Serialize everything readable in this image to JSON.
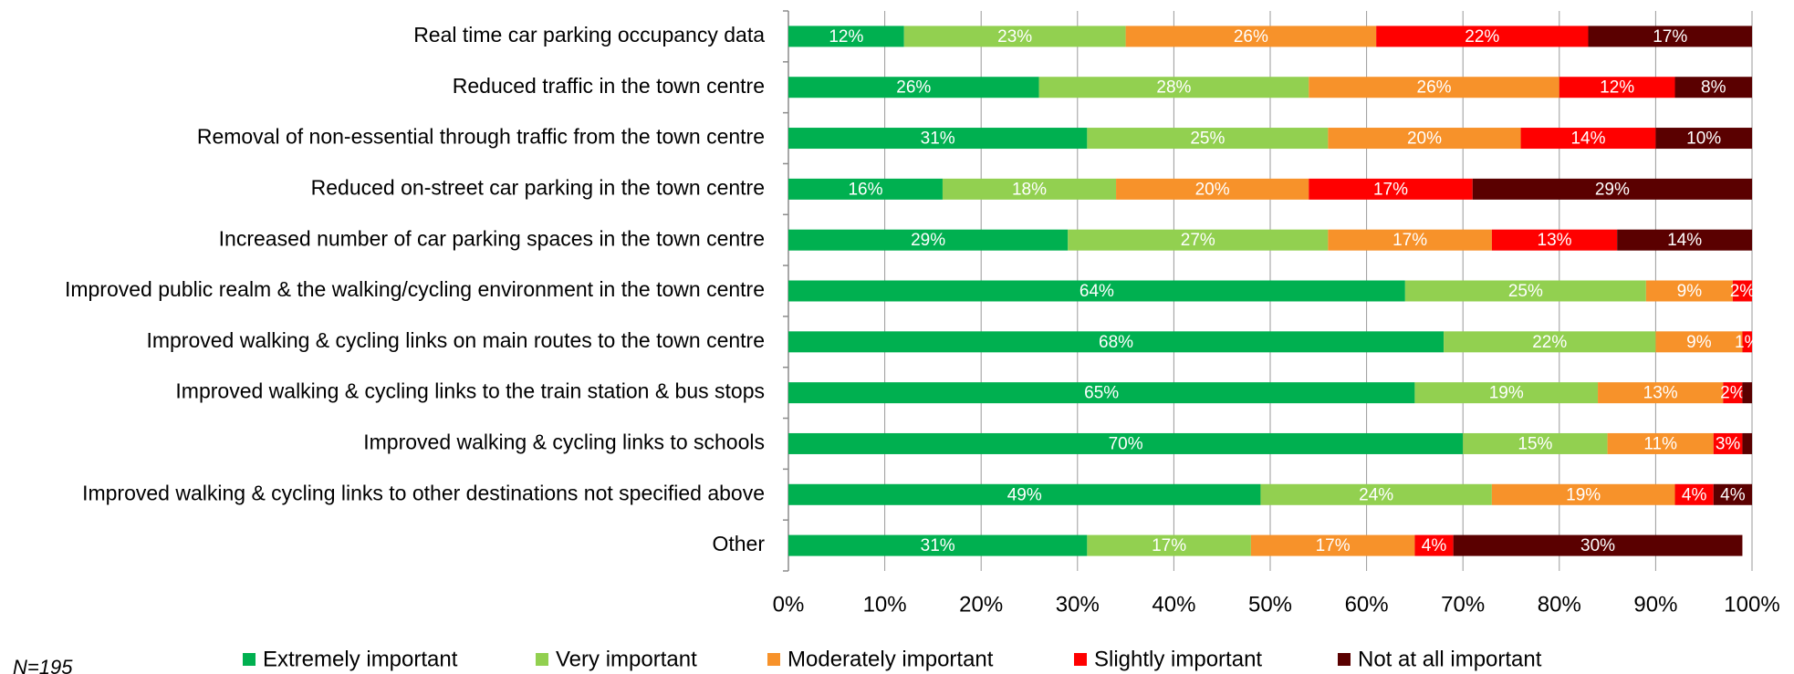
{
  "chart_data": {
    "type": "stacked_barh",
    "categories": [
      "Real time car parking occupancy data",
      "Reduced traffic in the town centre",
      "Removal of non-essential through traffic from the town centre",
      "Reduced on-street car parking in the town centre",
      "Increased number of car parking spaces in the town centre",
      "Improved public realm & the walking/cycling environment in the town centre",
      "Improved walking & cycling links on main routes to the town centre",
      "Improved walking & cycling links to the train station & bus stops",
      "Improved walking & cycling links to schools",
      "Improved walking & cycling links to other destinations not specified above",
      "Other"
    ],
    "series": [
      {
        "name": "Extremely important",
        "color": "#00b050",
        "values": [
          12,
          26,
          31,
          16,
          29,
          64,
          68,
          65,
          70,
          49,
          31
        ],
        "value_labels": [
          "12%",
          "26%",
          "31%",
          "16%",
          "29%",
          "64%",
          "68%",
          "65%",
          "70%",
          "49%",
          "31%"
        ]
      },
      {
        "name": "Very important",
        "color": "#92d050",
        "values": [
          23,
          28,
          25,
          18,
          27,
          25,
          22,
          19,
          15,
          24,
          17
        ],
        "value_labels": [
          "23%",
          "28%",
          "25%",
          "18%",
          "27%",
          "25%",
          "22%",
          "19%",
          "15%",
          "24%",
          "17%"
        ]
      },
      {
        "name": "Moderately important",
        "color": "#f7922a",
        "values": [
          26,
          26,
          20,
          20,
          17,
          9,
          9,
          13,
          11,
          19,
          17
        ],
        "value_labels": [
          "26%",
          "26%",
          "20%",
          "20%",
          "17%",
          "9%",
          "9%",
          "13%",
          "11%",
          "19%",
          "17%"
        ]
      },
      {
        "name": "Slightly important",
        "color": "#ff0000",
        "values": [
          22,
          12,
          14,
          17,
          13,
          2,
          1,
          2,
          3,
          4,
          4
        ],
        "value_labels": [
          "22%",
          "12%",
          "14%",
          "17%",
          "13%",
          "2%",
          "1%",
          "2%",
          "3%",
          "4%",
          "4%"
        ]
      },
      {
        "name": "Not at all important",
        "color": "#5a0000",
        "values": [
          17,
          8,
          10,
          29,
          14,
          0,
          0,
          1,
          1,
          4,
          30
        ],
        "value_labels": [
          "17%",
          "8%",
          "10%",
          "29%",
          "14%",
          null,
          null,
          null,
          null,
          "4%",
          "30%"
        ]
      }
    ],
    "xlim": [
      0,
      100
    ],
    "xticks": [
      {
        "value": 0,
        "label": "0%"
      },
      {
        "value": 10,
        "label": "10%"
      },
      {
        "value": 20,
        "label": "20%"
      },
      {
        "value": 30,
        "label": "30%"
      },
      {
        "value": 40,
        "label": "40%"
      },
      {
        "value": 50,
        "label": "50%"
      },
      {
        "value": 60,
        "label": "60%"
      },
      {
        "value": 70,
        "label": "70%"
      },
      {
        "value": 80,
        "label": "80%"
      },
      {
        "value": 90,
        "label": "90%"
      },
      {
        "value": 100,
        "label": "100%"
      }
    ],
    "grid": true,
    "legend": "bottom",
    "note": "N=195"
  }
}
